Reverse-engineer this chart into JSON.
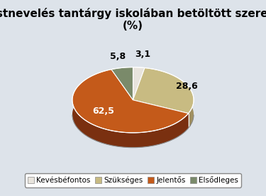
{
  "title": "Testnevelés tantárgy iskolában betöltött szerepe\n(%)",
  "slices": [
    3.1,
    28.6,
    62.5,
    5.8
  ],
  "labels": [
    "Kevésbéfontos",
    "Szükséges",
    "Jelentős",
    "Elsődleges"
  ],
  "colors_top": [
    "#e8e4dd",
    "#c8bb82",
    "#c45a1a",
    "#7a8a6a"
  ],
  "colors_side": [
    "#b0ac a5",
    "#a09060",
    "#7a3010",
    "#556050"
  ],
  "text_labels": [
    "3,1",
    "28,6",
    "62,5",
    "5,8"
  ],
  "fig_bg": "#dde3ea",
  "chart_bg": "#dde3ea",
  "title_fontsize": 11,
  "label_fontsize": 9,
  "legend_fontsize": 7.5
}
